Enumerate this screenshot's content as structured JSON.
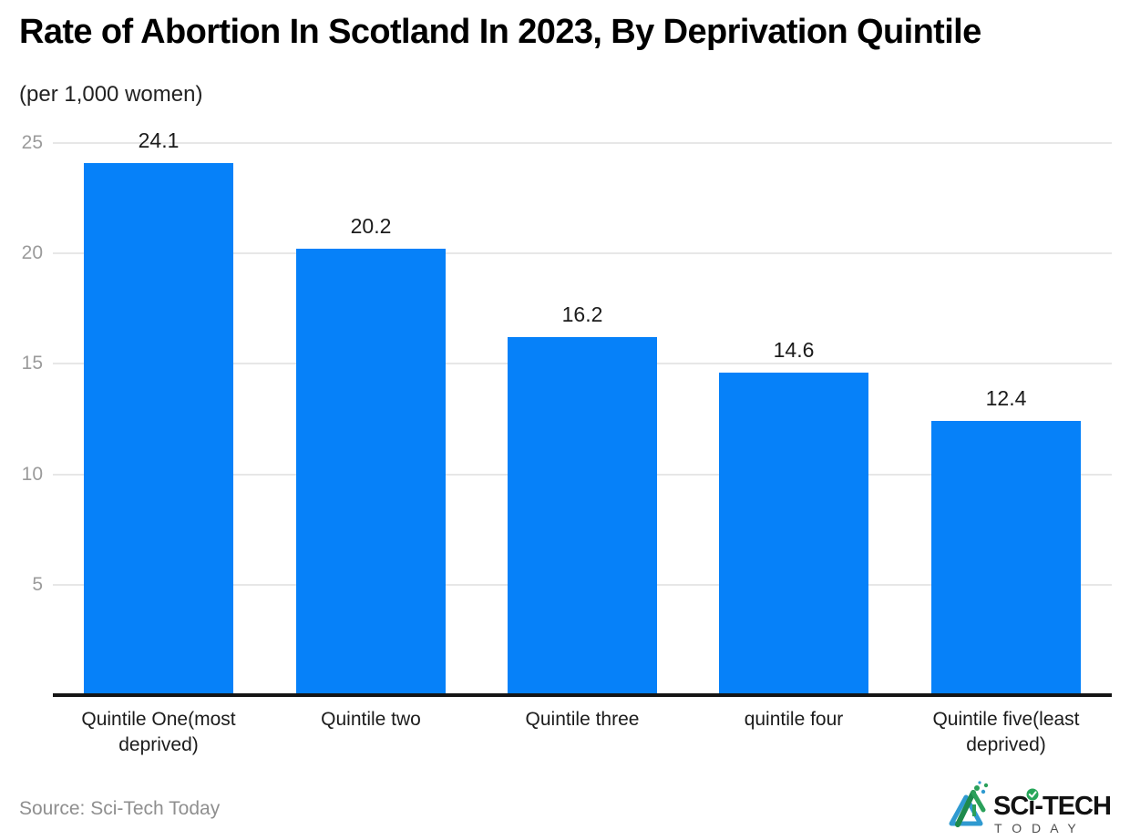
{
  "header": {
    "title": "Rate of Abortion In Scotland In 2023, By Deprivation Quintile",
    "subtitle": "(per 1,000 women)"
  },
  "chart_data": {
    "type": "bar",
    "title": "Rate of Abortion In Scotland In 2023, By Deprivation Quintile",
    "subtitle": "(per 1,000 women)",
    "categories": [
      "Quintile One(most deprived)",
      "Quintile two",
      "Quintile three",
      "quintile four",
      "Quintile five(least deprived)"
    ],
    "values": [
      24.1,
      20.2,
      16.2,
      14.6,
      12.4
    ],
    "value_labels": [
      "24.1",
      "20.2",
      "16.2",
      "14.6",
      "12.4"
    ],
    "yticks": [
      5,
      10,
      15,
      20,
      25
    ],
    "ylim": [
      0,
      26
    ],
    "xlabel": "",
    "ylabel": "per 1,000 women",
    "grid": "horizontal",
    "legend_position": "none",
    "bar_color": "#0681f9"
  },
  "colors": {
    "bar": "#0681f9",
    "gridline": "#e7e7e7",
    "tick_text": "#9b9b9b",
    "axis_line": "#151515",
    "label_text": "#1b1b1b",
    "source_text": "#8f8f8f",
    "logo_green": "#27a65a",
    "logo_blue": "#2f9ad0",
    "logo_text": "#121212",
    "logo_sub_text": "#4f4f4f"
  },
  "footer": {
    "source": "Source: Sci-Tech Today",
    "logo": {
      "brand": "SCi-TECH",
      "sub": "T O D A Y"
    }
  }
}
